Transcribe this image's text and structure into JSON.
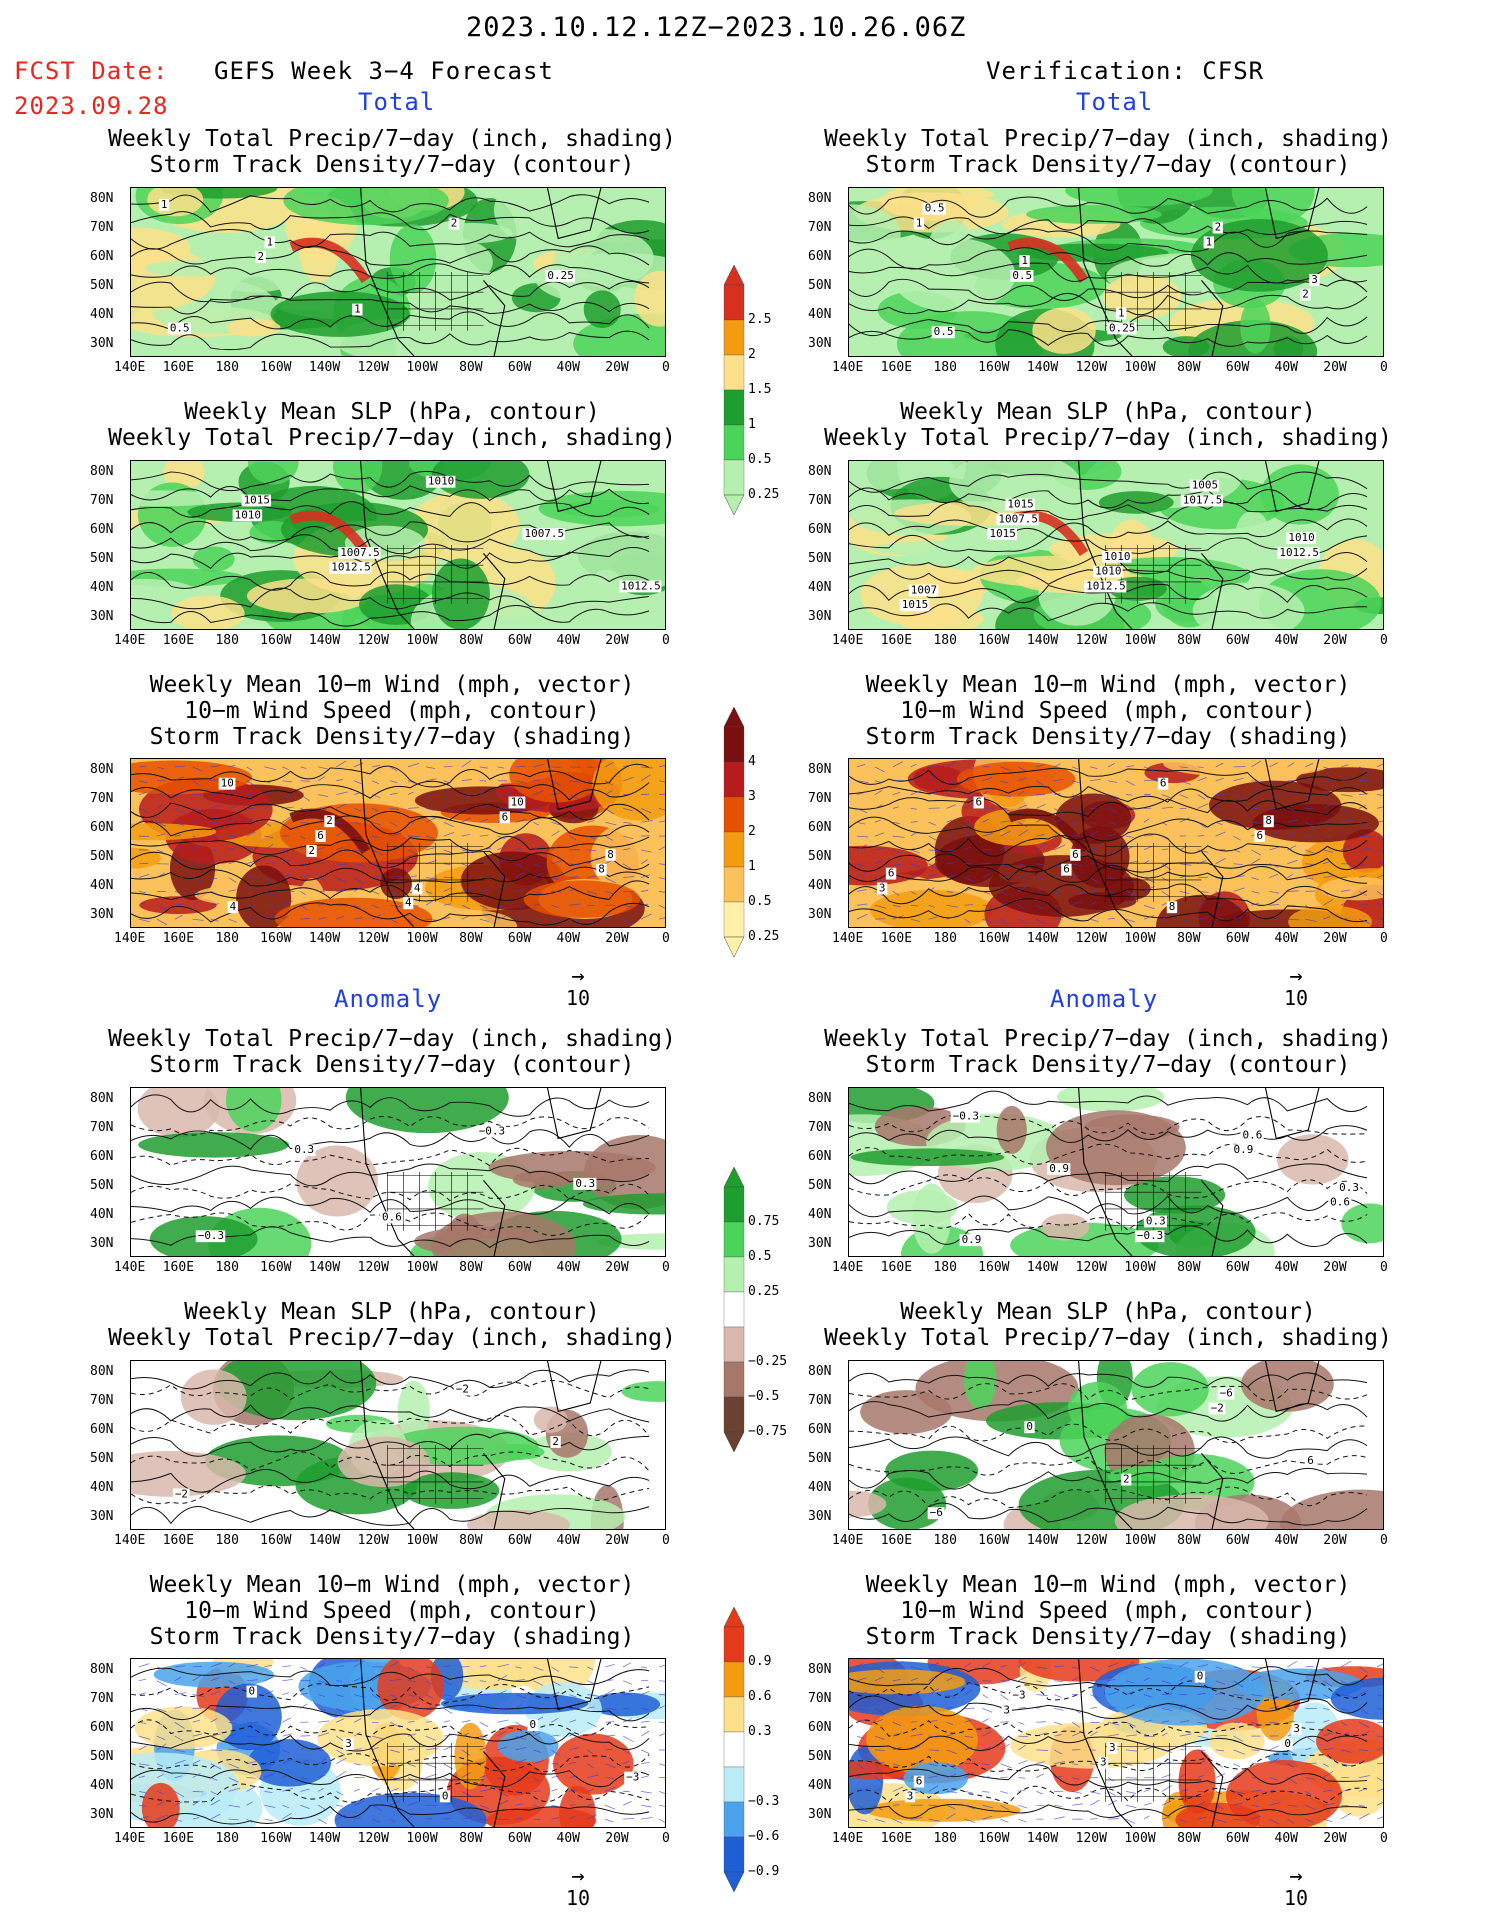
{
  "header": {
    "date_range": "2023.10.12.12Z−2023.10.26.06Z",
    "fcst_label": "FCST Date:",
    "fcst_date": "2023.09.28",
    "forecast_title": "GEFS Week 3−4 Forecast",
    "verification_title": "Verification: CFSR"
  },
  "sections": {
    "total": "Total",
    "anomaly": "Anomaly"
  },
  "panel_titles": {
    "precip_track": "Weekly Total Precip/7−day (inch, shading)\nStorm Track Density/7−day (contour)",
    "slp_precip": "Weekly Mean SLP (hPa, contour)\nWeekly Total Precip/7−day (inch, shading)",
    "wind_track": "Weekly Mean 10−m Wind (mph, vector)\n10−m Wind Speed (mph, contour)\nStorm Track Density/7−day (shading)"
  },
  "axes": {
    "lat": [
      "80N",
      "70N",
      "60N",
      "50N",
      "40N",
      "30N"
    ],
    "lon": [
      "140E",
      "160E",
      "180",
      "160W",
      "140W",
      "120W",
      "100W",
      "80W",
      "60W",
      "40W",
      "20W",
      "0"
    ]
  },
  "vector_ref": "10",
  "colorbars": {
    "precip_total": {
      "labels": [
        "2.5",
        "2",
        "1.5",
        "1",
        "0.5",
        "0.25"
      ],
      "colors": [
        "#d7301f",
        "#f39c12",
        "#fde08a",
        "#1e9e2e",
        "#4cd35a",
        "#b5f0b0"
      ]
    },
    "track_total": {
      "labels": [
        "4",
        "3",
        "2",
        "1",
        "0.5",
        "0.25"
      ],
      "colors": [
        "#7a0f0f",
        "#b71c1c",
        "#e65100",
        "#f39c12",
        "#fbc15a",
        "#fff2a8"
      ]
    },
    "precip_anom": {
      "labels": [
        "0.75",
        "0.5",
        "0.25",
        "−0.25",
        "−0.5",
        "−0.75"
      ],
      "colors": [
        "#1e9e2e",
        "#4cd35a",
        "#b5f0b0",
        "#ffffff",
        "#d9b7ac",
        "#a7776a",
        "#6b4131"
      ]
    },
    "track_anom": {
      "labels": [
        "0.9",
        "0.6",
        "0.3",
        "−0.3",
        "−0.6",
        "−0.9"
      ],
      "colors": [
        "#e53a1a",
        "#f39c12",
        "#fde08a",
        "#ffffff",
        "#b9ecf7",
        "#4aa3ec",
        "#1f5fd6"
      ]
    }
  },
  "map_labels": {
    "p1": [
      "1",
      "2",
      "1",
      "2",
      "0.25",
      "0.5",
      "1"
    ],
    "p2": [
      "1010",
      "1012.5",
      "1010",
      "1007.5",
      "1012.5",
      "1015",
      "1007.5"
    ],
    "p3": [
      "2",
      "4",
      "6",
      "8",
      "10",
      "6",
      "4",
      "10",
      "8",
      "4",
      "2"
    ],
    "p4": [
      "1",
      "0.5",
      "0.25",
      "1",
      "2",
      "0.5",
      "1",
      "1",
      "2",
      "3",
      "0.5"
    ],
    "p5": [
      "1015",
      "1012.5",
      "1017.5",
      "1012.5",
      "1015",
      "1007.5",
      "1010",
      "1005",
      "1010",
      "1007",
      "1015",
      "1010"
    ],
    "p6": [
      "6",
      "6",
      "6",
      "3",
      "6",
      "6",
      "8",
      "8",
      "6"
    ],
    "p7": [
      "0.6",
      "−0.3",
      "0.3",
      "−0.3",
      "0.3"
    ],
    "p8": [
      "−0.3",
      "0.9",
      "0.6",
      "−0.3",
      "0.9",
      "0.3",
      "0.6",
      "0.3",
      "0.9"
    ],
    "p9": [
      "−2",
      "2",
      "−2"
    ],
    "p10": [
      "−2",
      "6",
      "−6",
      "0",
      "2",
      "−6"
    ],
    "p11": [
      "0",
      "−3",
      "0",
      "3",
      "0"
    ],
    "p12": [
      "0",
      "3",
      "3",
      "3",
      "0",
      "3",
      "6",
      "−3",
      "3"
    ]
  }
}
